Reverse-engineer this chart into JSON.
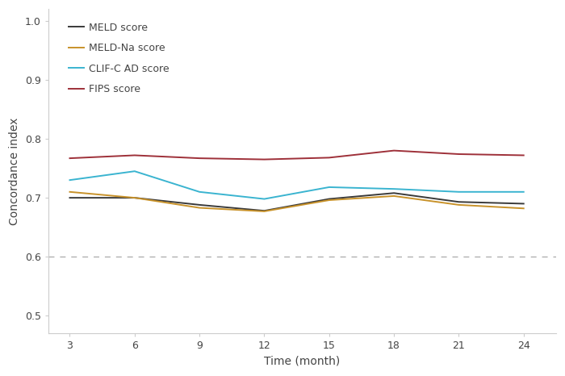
{
  "x": [
    3,
    6,
    9,
    12,
    15,
    18,
    21,
    24
  ],
  "meld": [
    0.7,
    0.7,
    0.688,
    0.678,
    0.698,
    0.708,
    0.693,
    0.69
  ],
  "meld_na": [
    0.71,
    0.7,
    0.683,
    0.677,
    0.696,
    0.703,
    0.688,
    0.682
  ],
  "clif_c_ad": [
    0.73,
    0.745,
    0.71,
    0.698,
    0.718,
    0.715,
    0.71,
    0.71
  ],
  "fips": [
    0.767,
    0.772,
    0.767,
    0.765,
    0.768,
    0.78,
    0.774,
    0.772
  ],
  "meld_color": "#3a3a3a",
  "meld_na_color": "#c8922a",
  "clif_c_ad_color": "#3ab4d0",
  "fips_color": "#9e3039",
  "reference_line_y": 0.6,
  "reference_line_color": "#b0b0b0",
  "xlabel": "Time (month)",
  "ylabel": "Concordance index",
  "xticks": [
    3,
    6,
    9,
    12,
    15,
    18,
    21,
    24
  ],
  "ylim": [
    0.47,
    1.02
  ],
  "yticks": [
    0.5,
    0.6,
    0.7,
    0.8,
    0.9,
    1.0
  ],
  "ytick_labels": [
    "0.5",
    "0.6",
    "0.7",
    "0.8",
    "0.9",
    "1.0"
  ],
  "legend_labels": [
    "MELD score",
    "MELD-Na score",
    "CLIF-C AD score",
    "FIPS score"
  ],
  "line_width": 1.4,
  "bg_color": "#ffffff",
  "tick_fontsize": 9,
  "axis_label_fontsize": 10,
  "legend_fontsize": 9
}
